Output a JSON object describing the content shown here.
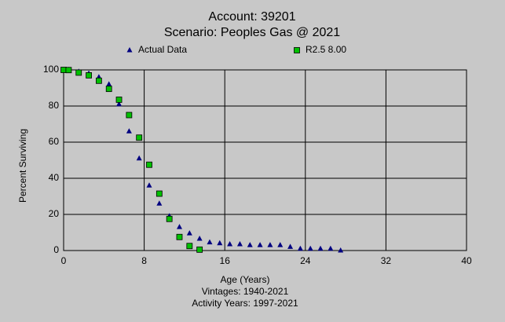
{
  "chart_data": {
    "type": "scatter",
    "title": "Account: 39201",
    "subtitle": "Scenario: Peoples Gas @ 2021",
    "x_label": "Age (Years)",
    "notes": [
      "Vintages: 1940-2021",
      "Activity Years: 1997-2021"
    ],
    "y_label": "Percent Surviving",
    "xlim": [
      0,
      40
    ],
    "xticks": [
      0,
      8,
      16,
      24,
      32,
      40
    ],
    "ylim": [
      0,
      100
    ],
    "yticks": [
      0,
      20,
      40,
      60,
      80,
      100
    ],
    "grid": true,
    "series": [
      {
        "name": "Actual Data",
        "marker": "triangle",
        "color": "#000080",
        "x": [
          0.5,
          1.5,
          2.5,
          3.5,
          4.5,
          5.5,
          6.5,
          7.5,
          8.5,
          9.5,
          10.5,
          11.5,
          12.5,
          13.5,
          14.5,
          15.5,
          16.5,
          17.5,
          18.5,
          19.5,
          20.5,
          21.5,
          22.5,
          23.5,
          24.5,
          25.5,
          26.5,
          27.5
        ],
        "values": [
          100,
          99,
          98,
          96,
          92,
          81,
          66,
          51,
          36,
          26,
          19,
          13,
          9.5,
          6.5,
          4.5,
          4,
          3.5,
          3.5,
          3,
          3,
          3,
          3,
          2,
          1,
          1,
          1,
          1,
          0
        ]
      },
      {
        "name": "R2.5 8.00",
        "marker": "square",
        "color": "#00c000",
        "x": [
          0,
          0.5,
          1.5,
          2.5,
          3.5,
          4.5,
          5.5,
          6.5,
          7.5,
          8.5,
          9.5,
          10.5,
          11.5,
          12.5,
          13.5
        ],
        "values": [
          100,
          99.9,
          98.5,
          97,
          94,
          89.5,
          83.5,
          75,
          62.5,
          47.5,
          31.5,
          17.5,
          7.5,
          2.5,
          0.5
        ]
      }
    ]
  }
}
